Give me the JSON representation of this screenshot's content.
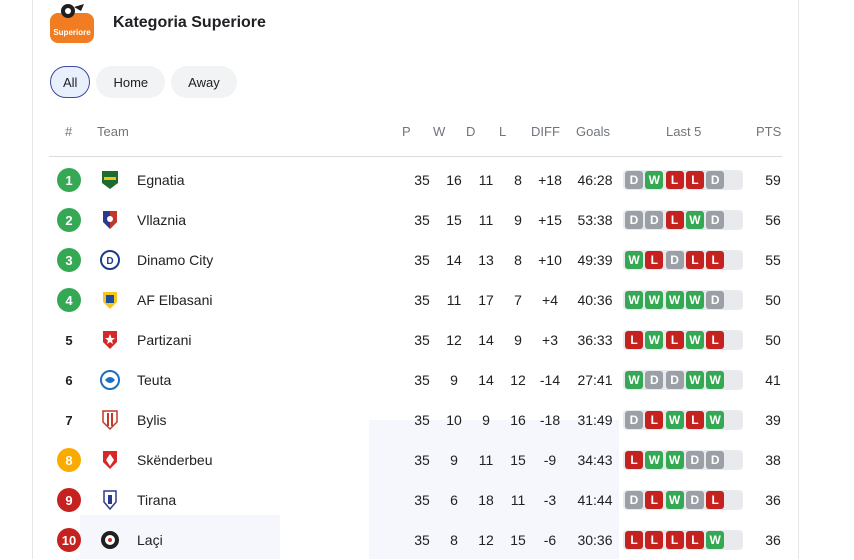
{
  "title": "Kategoria Superiore",
  "logo_text": "Superiore",
  "tabs": [
    "All",
    "Home",
    "Away"
  ],
  "headers": {
    "rank": "#",
    "team": "Team",
    "p": "P",
    "w": "W",
    "d": "D",
    "l": "L",
    "diff": "DIFF",
    "goals": "Goals",
    "last5": "Last 5",
    "pts": "PTS"
  },
  "colors": {
    "green": "#34a853",
    "yellow": "#f9ab00",
    "red": "#c5221f",
    "draw": "#9aa0a6",
    "active_tab_border": "#3c4a9c"
  },
  "rows": [
    {
      "rank": "1",
      "rank_color": "green",
      "team": "Egnatia",
      "crest": "egnatia-crest",
      "p": "35",
      "w": "16",
      "d": "11",
      "l": "8",
      "diff": "+18",
      "goals": "46:28",
      "form": [
        "D",
        "W",
        "L",
        "L",
        "D"
      ],
      "pts": "59"
    },
    {
      "rank": "2",
      "rank_color": "green",
      "team": "Vllaznia",
      "crest": "vllaznia-crest",
      "p": "35",
      "w": "15",
      "d": "11",
      "l": "9",
      "diff": "+15",
      "goals": "53:38",
      "form": [
        "D",
        "D",
        "L",
        "W",
        "D"
      ],
      "pts": "56"
    },
    {
      "rank": "3",
      "rank_color": "green",
      "team": "Dinamo City",
      "crest": "dinamo-city-crest",
      "p": "35",
      "w": "14",
      "d": "13",
      "l": "8",
      "diff": "+10",
      "goals": "49:39",
      "form": [
        "W",
        "L",
        "D",
        "L",
        "L"
      ],
      "pts": "55"
    },
    {
      "rank": "4",
      "rank_color": "green",
      "team": "AF Elbasani",
      "crest": "af-elbasani-crest",
      "p": "35",
      "w": "11",
      "d": "17",
      "l": "7",
      "diff": "+4",
      "goals": "40:36",
      "form": [
        "W",
        "W",
        "W",
        "W",
        "D"
      ],
      "pts": "50"
    },
    {
      "rank": "5",
      "rank_color": "none",
      "team": "Partizani",
      "crest": "partizani-crest",
      "p": "35",
      "w": "12",
      "d": "14",
      "l": "9",
      "diff": "+3",
      "goals": "36:33",
      "form": [
        "L",
        "W",
        "L",
        "W",
        "L"
      ],
      "pts": "50"
    },
    {
      "rank": "6",
      "rank_color": "none",
      "team": "Teuta",
      "crest": "teuta-crest",
      "p": "35",
      "w": "9",
      "d": "14",
      "l": "12",
      "diff": "-14",
      "goals": "27:41",
      "form": [
        "W",
        "D",
        "D",
        "W",
        "W"
      ],
      "pts": "41"
    },
    {
      "rank": "7",
      "rank_color": "none",
      "team": "Bylis",
      "crest": "bylis-crest",
      "p": "35",
      "w": "10",
      "d": "9",
      "l": "16",
      "diff": "-18",
      "goals": "31:49",
      "form": [
        "D",
        "L",
        "W",
        "L",
        "W"
      ],
      "pts": "39"
    },
    {
      "rank": "8",
      "rank_color": "yellow",
      "team": "Skënderbeu",
      "crest": "skenderbeu-crest",
      "p": "35",
      "w": "9",
      "d": "11",
      "l": "15",
      "diff": "-9",
      "goals": "34:43",
      "form": [
        "L",
        "W",
        "W",
        "D",
        "D"
      ],
      "pts": "38"
    },
    {
      "rank": "9",
      "rank_color": "red",
      "team": "Tirana",
      "crest": "tirana-crest",
      "p": "35",
      "w": "6",
      "d": "18",
      "l": "11",
      "diff": "-3",
      "goals": "41:44",
      "form": [
        "D",
        "L",
        "W",
        "D",
        "L"
      ],
      "pts": "36"
    },
    {
      "rank": "10",
      "rank_color": "red",
      "team": "Laçi",
      "crest": "laci-crest",
      "p": "35",
      "w": "8",
      "d": "12",
      "l": "15",
      "diff": "-6",
      "goals": "30:36",
      "form": [
        "L",
        "L",
        "L",
        "L",
        "W"
      ],
      "pts": "36"
    }
  ]
}
